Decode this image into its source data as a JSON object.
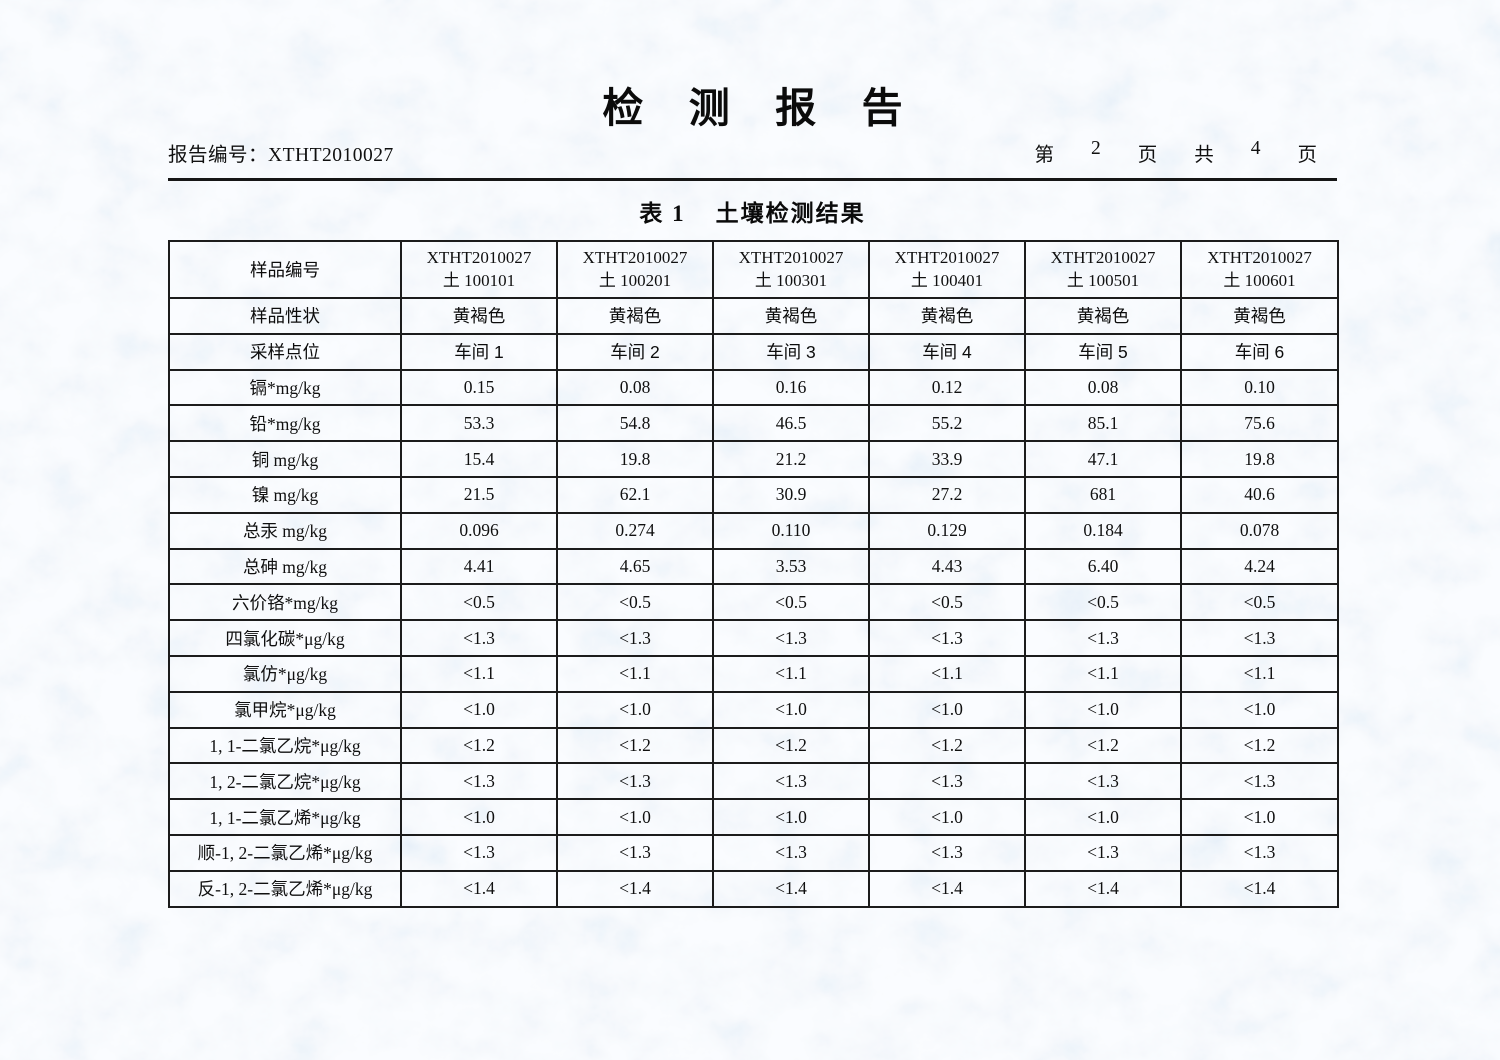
{
  "header": {
    "title": "检 测 报 告",
    "report_no": "报告编号：XTHT2010027",
    "page_info": [
      "第",
      "2",
      "页",
      "共",
      "4",
      "页"
    ]
  },
  "table": {
    "caption_prefix": "表 1",
    "caption_title": "土壤检测结果",
    "corner_labels": [
      "样品编号",
      "样品性状",
      "采样点位"
    ],
    "sample_columns": [
      {
        "id_line1": "XTHT2010027",
        "id_line2": "土 100101",
        "appearance": "黄褐色",
        "location": "车间 1"
      },
      {
        "id_line1": "XTHT2010027",
        "id_line2": "土 100201",
        "appearance": "黄褐色",
        "location": "车间 2"
      },
      {
        "id_line1": "XTHT2010027",
        "id_line2": "土 100301",
        "appearance": "黄褐色",
        "location": "车间 3"
      },
      {
        "id_line1": "XTHT2010027",
        "id_line2": "土 100401",
        "appearance": "黄褐色",
        "location": "车间 4"
      },
      {
        "id_line1": "XTHT2010027",
        "id_line2": "土 100501",
        "appearance": "黄褐色",
        "location": "车间 5"
      },
      {
        "id_line1": "XTHT2010027",
        "id_line2": "土 100601",
        "appearance": "黄褐色",
        "location": "车间 6"
      }
    ],
    "parameter_rows": [
      {
        "label": "镉*mg/kg",
        "values": [
          "0.15",
          "0.08",
          "0.16",
          "0.12",
          "0.08",
          "0.10"
        ]
      },
      {
        "label": "铅*mg/kg",
        "values": [
          "53.3",
          "54.8",
          "46.5",
          "55.2",
          "85.1",
          "75.6"
        ]
      },
      {
        "label": "铜 mg/kg",
        "values": [
          "15.4",
          "19.8",
          "21.2",
          "33.9",
          "47.1",
          "19.8"
        ]
      },
      {
        "label": "镍 mg/kg",
        "values": [
          "21.5",
          "62.1",
          "30.9",
          "27.2",
          "681",
          "40.6"
        ]
      },
      {
        "label": "总汞 mg/kg",
        "values": [
          "0.096",
          "0.274",
          "0.110",
          "0.129",
          "0.184",
          "0.078"
        ]
      },
      {
        "label": "总砷 mg/kg",
        "values": [
          "4.41",
          "4.65",
          "3.53",
          "4.43",
          "6.40",
          "4.24"
        ]
      },
      {
        "label": "六价铬*mg/kg",
        "values": [
          "<0.5",
          "<0.5",
          "<0.5",
          "<0.5",
          "<0.5",
          "<0.5"
        ]
      },
      {
        "label": "四氯化碳*μg/kg",
        "values": [
          "<1.3",
          "<1.3",
          "<1.3",
          "<1.3",
          "<1.3",
          "<1.3"
        ]
      },
      {
        "label": "氯仿*μg/kg",
        "values": [
          "<1.1",
          "<1.1",
          "<1.1",
          "<1.1",
          "<1.1",
          "<1.1"
        ]
      },
      {
        "label": "氯甲烷*μg/kg",
        "values": [
          "<1.0",
          "<1.0",
          "<1.0",
          "<1.0",
          "<1.0",
          "<1.0"
        ]
      },
      {
        "label": "1, 1-二氯乙烷*μg/kg",
        "values": [
          "<1.2",
          "<1.2",
          "<1.2",
          "<1.2",
          "<1.2",
          "<1.2"
        ]
      },
      {
        "label": "1, 2-二氯乙烷*μg/kg",
        "values": [
          "<1.3",
          "<1.3",
          "<1.3",
          "<1.3",
          "<1.3",
          "<1.3"
        ]
      },
      {
        "label": "1, 1-二氯乙烯*μg/kg",
        "values": [
          "<1.0",
          "<1.0",
          "<1.0",
          "<1.0",
          "<1.0",
          "<1.0"
        ]
      },
      {
        "label": "顺-1, 2-二氯乙烯*μg/kg",
        "values": [
          "<1.3",
          "<1.3",
          "<1.3",
          "<1.3",
          "<1.3",
          "<1.3"
        ]
      },
      {
        "label": "反-1, 2-二氯乙烯*μg/kg",
        "values": [
          "<1.4",
          "<1.4",
          "<1.4",
          "<1.4",
          "<1.4",
          "<1.4"
        ]
      }
    ]
  },
  "colors": {
    "paper_base": "#d2e4f4",
    "paper_dark": "#b8d1eb",
    "paper_light": "#edf5fc",
    "ink": "#101010",
    "table_border": "#1c1c1c"
  }
}
